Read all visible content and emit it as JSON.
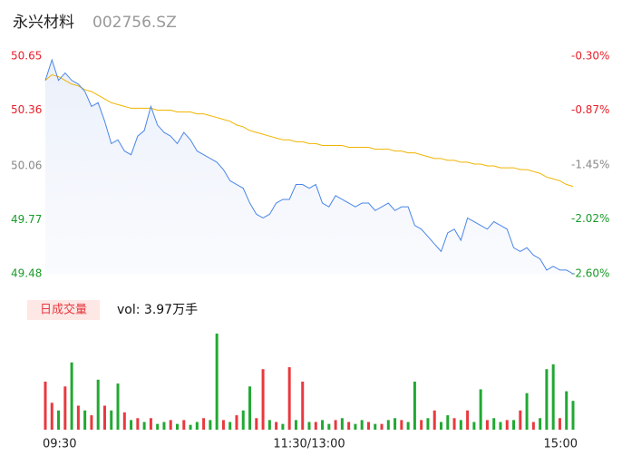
{
  "chart_data": [
    {
      "type": "line",
      "title": "永兴材料",
      "subtitle": "002756.SZ",
      "values": [
        50.52,
        50.63,
        50.52,
        50.56,
        50.52,
        50.5,
        50.46,
        50.38,
        50.4,
        50.3,
        50.18,
        50.2,
        50.14,
        50.12,
        50.22,
        50.25,
        50.38,
        50.28,
        50.24,
        50.22,
        50.18,
        50.24,
        50.2,
        50.14,
        50.12,
        50.1,
        50.08,
        50.04,
        49.98,
        49.96,
        49.94,
        49.86,
        49.8,
        49.78,
        49.8,
        49.86,
        49.88,
        49.88,
        49.96,
        49.96,
        49.94,
        49.96,
        49.86,
        49.84,
        49.9,
        49.88,
        49.86,
        49.84,
        49.86,
        49.86,
        49.82,
        49.84,
        49.86,
        49.82,
        49.84,
        49.84,
        49.74,
        49.72,
        49.68,
        49.64,
        49.6,
        49.7,
        49.72,
        49.66,
        49.78,
        49.76,
        49.74,
        49.72,
        49.76,
        49.74,
        49.72,
        49.62,
        49.6,
        49.62,
        49.58,
        49.56,
        49.5,
        49.52,
        49.5,
        49.5,
        49.48
      ],
      "avg_values": [
        50.52,
        50.55,
        50.54,
        50.52,
        50.5,
        50.49,
        50.47,
        50.46,
        50.44,
        50.42,
        50.4,
        50.39,
        50.38,
        50.37,
        50.37,
        50.37,
        50.37,
        50.36,
        50.36,
        50.36,
        50.35,
        50.35,
        50.35,
        50.34,
        50.34,
        50.33,
        50.32,
        50.31,
        50.3,
        50.28,
        50.27,
        50.25,
        50.24,
        50.23,
        50.22,
        50.21,
        50.2,
        50.2,
        50.19,
        50.19,
        50.18,
        50.18,
        50.17,
        50.17,
        50.17,
        50.17,
        50.16,
        50.16,
        50.16,
        50.16,
        50.15,
        50.15,
        50.15,
        50.14,
        50.14,
        50.13,
        50.13,
        50.12,
        50.11,
        50.1,
        50.1,
        50.09,
        50.09,
        50.08,
        50.08,
        50.07,
        50.07,
        50.06,
        50.06,
        50.05,
        50.05,
        50.05,
        50.04,
        50.04,
        50.03,
        50.02,
        50.0,
        49.99,
        49.98,
        49.96,
        49.95
      ],
      "color": "#4a86e8",
      "avg_color": "#f0b400",
      "ylim": [
        49.48,
        50.65
      ],
      "yticks": [
        50.65,
        50.36,
        50.06,
        49.77,
        49.48
      ],
      "y2lim": [
        -2.6,
        -0.3
      ],
      "y2ticks": [
        {
          "value": -0.3,
          "label": "-0.30%"
        },
        {
          "value": -0.87,
          "label": "-0.87%"
        },
        {
          "value": -1.45,
          "label": "-1.45%"
        },
        {
          "value": -2.02,
          "label": "-2.02%"
        },
        {
          "value": -2.6,
          "label": "-2.60%"
        }
      ],
      "tick_colors": [
        "#e8202a",
        "#e8202a",
        "#888888",
        "#1a9a2a",
        "#1a9a2a"
      ]
    },
    {
      "type": "bar",
      "title": "日成交量",
      "subtitle": "vol: 3.97万手",
      "categories": [
        "09:30",
        null,
        null,
        null,
        null,
        null,
        null,
        null,
        null,
        null,
        null,
        null,
        null,
        null,
        null,
        null,
        null,
        null,
        null,
        null,
        null,
        null,
        null,
        null,
        null,
        null,
        null,
        null,
        null,
        null,
        null,
        null,
        null,
        null,
        null,
        null,
        null,
        null,
        null,
        null,
        "11:30/13:00",
        null,
        null,
        null,
        null,
        null,
        null,
        null,
        null,
        null,
        null,
        null,
        null,
        null,
        null,
        null,
        null,
        null,
        null,
        null,
        null,
        null,
        null,
        null,
        null,
        null,
        null,
        null,
        null,
        null,
        null,
        null,
        null,
        null,
        null,
        null,
        null,
        null,
        null,
        null,
        "15:00"
      ],
      "values": [
        50,
        28,
        20,
        45,
        70,
        25,
        20,
        15,
        52,
        25,
        20,
        48,
        18,
        10,
        12,
        8,
        12,
        6,
        8,
        10,
        6,
        10,
        5,
        8,
        12,
        10,
        100,
        10,
        8,
        15,
        20,
        45,
        12,
        63,
        10,
        8,
        6,
        65,
        10,
        50,
        8,
        8,
        10,
        6,
        10,
        12,
        8,
        6,
        10,
        8,
        6,
        6,
        10,
        12,
        10,
        8,
        50,
        10,
        12,
        20,
        8,
        15,
        12,
        10,
        20,
        8,
        42,
        10,
        12,
        8,
        10,
        10,
        20,
        38,
        8,
        12,
        63,
        68,
        12,
        40,
        30
      ],
      "rising": [
        true,
        true,
        false,
        true,
        false,
        true,
        false,
        true,
        false,
        true,
        false,
        false,
        true,
        false,
        true,
        false,
        true,
        false,
        false,
        true,
        false,
        true,
        false,
        false,
        true,
        false,
        false,
        true,
        false,
        true,
        false,
        false,
        true,
        true,
        false,
        true,
        false,
        true,
        false,
        true,
        false,
        true,
        false,
        false,
        true,
        false,
        true,
        false,
        false,
        true,
        false,
        true,
        false,
        false,
        true,
        false,
        false,
        true,
        false,
        true,
        false,
        false,
        true,
        false,
        true,
        false,
        false,
        true,
        false,
        false,
        true,
        false,
        true,
        false,
        true,
        false,
        false,
        false,
        true,
        false,
        false
      ],
      "up_color": "#e8393f",
      "down_color": "#22a833",
      "ylim": [
        0,
        100
      ]
    }
  ]
}
